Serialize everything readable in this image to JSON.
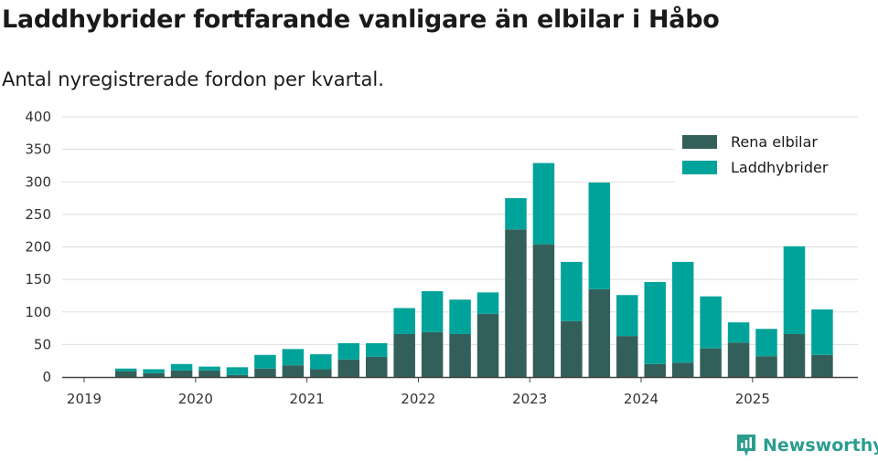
{
  "title": "Laddhybrider fortfarande vanligare än elbilar i Håbo",
  "subtitle": "Antal nyregistrerade fordon per kvartal.",
  "brand": "Newsworthy",
  "colors": {
    "rena": "#335f5a",
    "ladd": "#00a39a",
    "brand": "#2a9d8f",
    "grid": "#dddddd"
  },
  "chart_data": {
    "type": "bar",
    "stacked": true,
    "title": "Laddhybrider fortfarande vanligare än elbilar i Håbo",
    "subtitle": "Antal nyregistrerade fordon per kvartal.",
    "xlabel": "",
    "ylabel": "",
    "ylim": [
      0,
      400
    ],
    "yticks": [
      0,
      50,
      100,
      150,
      200,
      250,
      300,
      350,
      400
    ],
    "year_labels": [
      "2019",
      "2020",
      "2021",
      "2022",
      "2023",
      "2024",
      "2025"
    ],
    "categories": [
      "2019 Q1",
      "2019 Q2",
      "2019 Q3",
      "2019 Q4",
      "2020 Q1",
      "2020 Q2",
      "2020 Q3",
      "2020 Q4",
      "2021 Q1",
      "2021 Q2",
      "2021 Q3",
      "2021 Q4",
      "2022 Q1",
      "2022 Q2",
      "2022 Q3",
      "2022 Q4",
      "2023 Q1",
      "2023 Q2",
      "2023 Q3",
      "2023 Q4",
      "2024 Q1",
      "2024 Q2",
      "2024 Q3",
      "2024 Q4",
      "2025 Q1",
      "2025 Q2",
      "2025 Q3"
    ],
    "series": [
      {
        "name": "Rena elbilar",
        "color": "#335f5a",
        "values": [
          0,
          9,
          6,
          10,
          10,
          3,
          13,
          18,
          12,
          27,
          31,
          66,
          69,
          66,
          97,
          227,
          204,
          86,
          135,
          63,
          20,
          22,
          44,
          53,
          32,
          66,
          34
        ]
      },
      {
        "name": "Laddhybrider",
        "color": "#00a39a",
        "values": [
          0,
          4,
          6,
          10,
          6,
          12,
          21,
          25,
          23,
          25,
          21,
          40,
          63,
          53,
          33,
          48,
          125,
          91,
          164,
          63,
          126,
          155,
          80,
          31,
          42,
          135,
          70
        ]
      }
    ],
    "legend": "top-right"
  }
}
